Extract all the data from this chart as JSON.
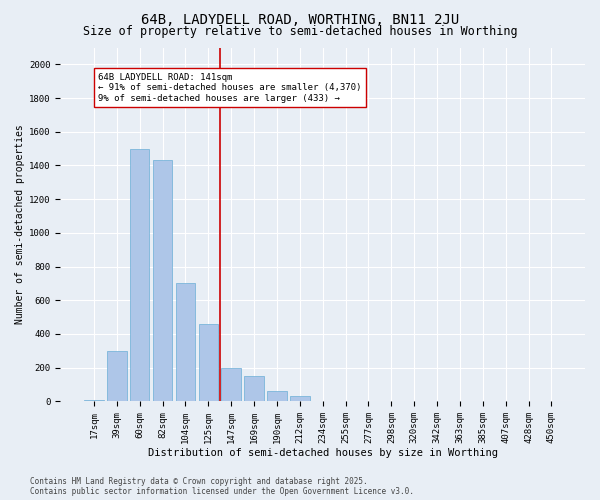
{
  "title": "64B, LADYDELL ROAD, WORTHING, BN11 2JU",
  "subtitle": "Size of property relative to semi-detached houses in Worthing",
  "xlabel": "Distribution of semi-detached houses by size in Worthing",
  "ylabel": "Number of semi-detached properties",
  "categories": [
    "17sqm",
    "39sqm",
    "60sqm",
    "82sqm",
    "104sqm",
    "125sqm",
    "147sqm",
    "169sqm",
    "190sqm",
    "212sqm",
    "234sqm",
    "255sqm",
    "277sqm",
    "298sqm",
    "320sqm",
    "342sqm",
    "363sqm",
    "385sqm",
    "407sqm",
    "428sqm",
    "450sqm"
  ],
  "values": [
    10,
    300,
    1500,
    1430,
    700,
    460,
    200,
    150,
    60,
    30,
    5,
    0,
    0,
    0,
    0,
    0,
    0,
    0,
    0,
    0,
    0
  ],
  "bar_color": "#aec6e8",
  "bar_edge_color": "#6baed6",
  "vline_x_idx": 5.5,
  "vline_color": "#cc0000",
  "annotation_line1": "64B LADYDELL ROAD: 141sqm",
  "annotation_line2": "← 91% of semi-detached houses are smaller (4,370)",
  "annotation_line3": "9% of semi-detached houses are larger (433) →",
  "annotation_box_color": "#ffffff",
  "annotation_box_edge_color": "#cc0000",
  "ylim": [
    0,
    2100
  ],
  "yticks": [
    0,
    200,
    400,
    600,
    800,
    1000,
    1200,
    1400,
    1600,
    1800,
    2000
  ],
  "background_color": "#e8eef5",
  "footer_line1": "Contains HM Land Registry data © Crown copyright and database right 2025.",
  "footer_line2": "Contains public sector information licensed under the Open Government Licence v3.0.",
  "title_fontsize": 10,
  "subtitle_fontsize": 8.5,
  "axis_label_fontsize": 7.5,
  "tick_fontsize": 6.5,
  "annotation_fontsize": 6.5,
  "footer_fontsize": 5.5,
  "ylabel_fontsize": 7
}
